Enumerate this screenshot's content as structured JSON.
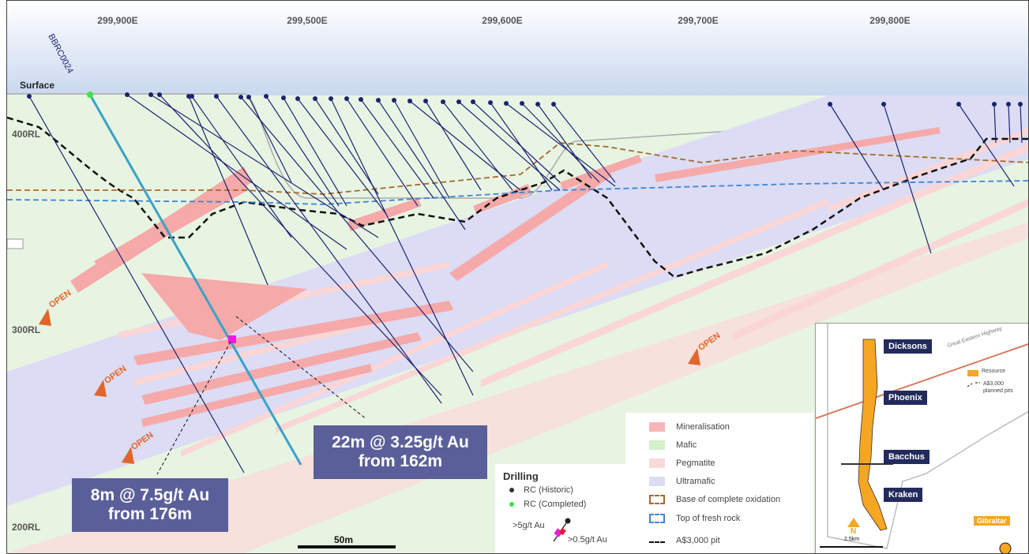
{
  "map": {
    "eastings": [
      "299,900E",
      "299,500E",
      "299,600E",
      "299,700E",
      "299,800E"
    ],
    "rl_labels": [
      "400RL",
      "300RL",
      "200RL"
    ],
    "surface_label": "Surface",
    "hole_label": "BBRC0024",
    "open_labels": [
      "OPEN",
      "OPEN",
      "OPEN",
      "OPEN",
      "OPEN"
    ],
    "scale_label": "50m",
    "callouts": [
      {
        "line1": "22m @ 3.25g/t Au",
        "line2": "from 162m"
      },
      {
        "line1": "8m @ 7.5g/t Au",
        "line2": "from 176m"
      }
    ]
  },
  "legend": {
    "items": [
      {
        "label": "Mineralisation",
        "color": "#f7b7b7"
      },
      {
        "label": "Mafic",
        "color": "#d3f0c9"
      },
      {
        "label": "Pegmatite",
        "color": "#fad9d9"
      },
      {
        "label": "Ultramafic",
        "color": "#dcdcf5"
      },
      {
        "label": "Base of complete oxidation",
        "color": "#a56b2a"
      },
      {
        "label": "Top of fresh rock",
        "color": "#3e86d4"
      },
      {
        "label": "A$3,000 pit",
        "color": "#111111"
      }
    ]
  },
  "drilling": {
    "title": "Drilling",
    "historic": "RC (Historic)",
    "completed": "RC (Completed)",
    "high": ">5g/t Au",
    "low": ">0.5g/t Au",
    "historic_color": "#333333",
    "completed_color": "#3ee24a"
  },
  "inset": {
    "pits": [
      "Dicksons",
      "Phoenix",
      "Bacchus",
      "Kraken"
    ],
    "highway": "Great Eastern Highway",
    "resource": "Resource",
    "planned": "A$3,000",
    "planned2": "planned pits",
    "gibraltar": "Gibraltar",
    "north": "N",
    "scale": "2.5km",
    "resource_color": "#f6a623"
  }
}
